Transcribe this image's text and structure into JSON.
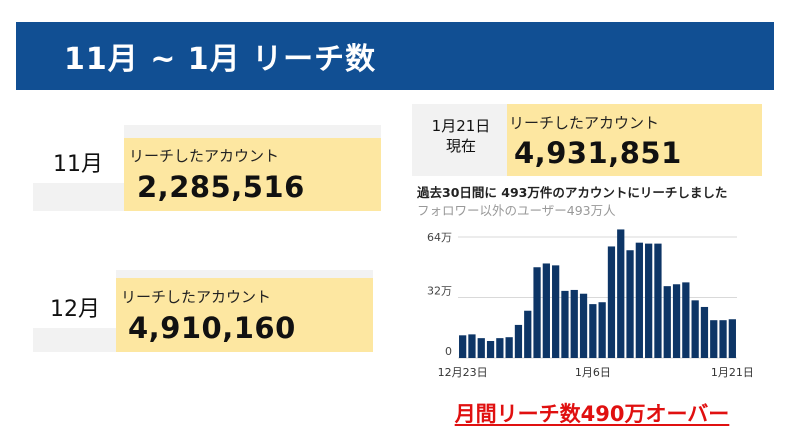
{
  "header": {
    "title": "11月 ~ 1月 リーチ数"
  },
  "months": [
    {
      "label": "11月",
      "caption": "リーチしたアカウント",
      "value": "2,285,516"
    },
    {
      "label": "12月",
      "caption": "リーチしたアカウント",
      "value": "4,910,160"
    }
  ],
  "current": {
    "date_line1": "1月21日",
    "date_line2": "現在",
    "caption": "リーチしたアカウント",
    "value": "4,931,851"
  },
  "stats": {
    "summary": "過去30日間に 493万件のアカウントにリーチしました",
    "non_follower": "フォロワー以外のユーザー493万人"
  },
  "footer": {
    "text": "月間リーチ数490万オーバー"
  },
  "colors": {
    "title_bar": "#114f93",
    "highlight": "#fde7a1",
    "bar": "#0d3566",
    "footer": "#e01010"
  },
  "chart_data": {
    "type": "bar",
    "title": "",
    "xlabel": "",
    "ylabel": "",
    "ylim": [
      0,
      64
    ],
    "yticks": [
      {
        "value": 64,
        "label": "64万"
      },
      {
        "value": 32,
        "label": "32万"
      },
      {
        "value": 0,
        "label": "0"
      }
    ],
    "xticks": [
      {
        "index": 0,
        "label": "12月23日"
      },
      {
        "index": 14,
        "label": "1月6日"
      },
      {
        "index": 29,
        "label": "1月21日"
      }
    ],
    "unit": "万",
    "values": [
      12,
      12.5,
      10.5,
      9,
      10.5,
      11,
      17.5,
      25,
      48,
      50,
      49,
      35.5,
      36,
      34,
      28.5,
      29.5,
      59,
      68,
      57,
      61,
      60.5,
      60.5,
      38,
      39,
      40,
      30.5,
      27,
      20,
      20,
      20.5
    ]
  }
}
